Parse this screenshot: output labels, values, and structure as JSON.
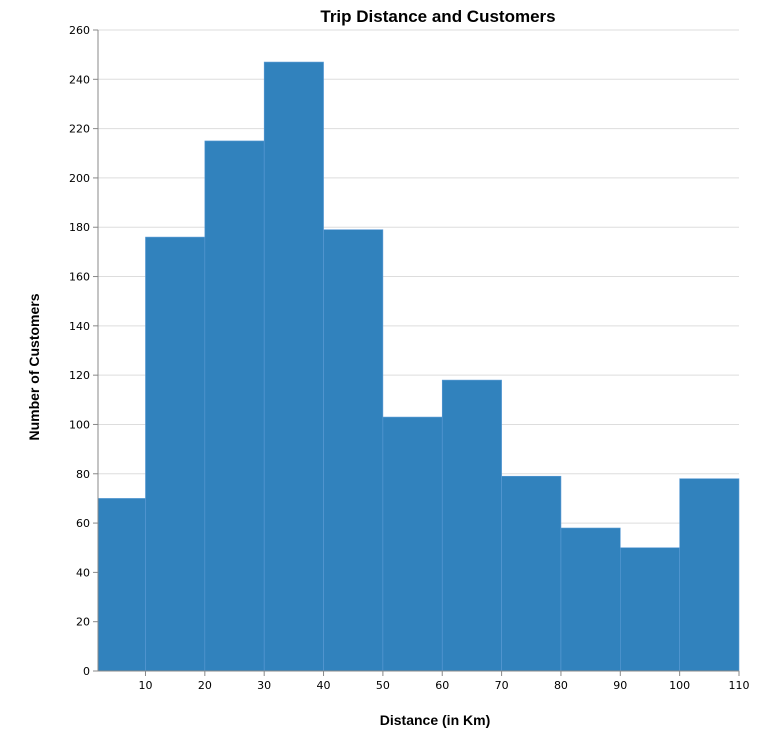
{
  "chart_data": {
    "type": "bar",
    "title": "Trip Distance and Customers",
    "xlabel": "Distance (in Km)",
    "ylabel": "Number of Customers",
    "bins": [
      {
        "x0": 2,
        "x1": 10,
        "value": 70
      },
      {
        "x0": 10,
        "x1": 20,
        "value": 176
      },
      {
        "x0": 20,
        "x1": 30,
        "value": 215
      },
      {
        "x0": 30,
        "x1": 40,
        "value": 247
      },
      {
        "x0": 40,
        "x1": 50,
        "value": 179
      },
      {
        "x0": 50,
        "x1": 60,
        "value": 103
      },
      {
        "x0": 60,
        "x1": 70,
        "value": 118
      },
      {
        "x0": 70,
        "x1": 80,
        "value": 79
      },
      {
        "x0": 80,
        "x1": 90,
        "value": 58
      },
      {
        "x0": 90,
        "x1": 100,
        "value": 50
      },
      {
        "x0": 100,
        "x1": 110,
        "value": 78
      }
    ],
    "xlim": [
      2,
      110
    ],
    "ylim": [
      0,
      260
    ],
    "x_ticks": [
      10,
      20,
      30,
      40,
      50,
      60,
      70,
      80,
      90,
      100,
      110
    ],
    "y_ticks": [
      0,
      20,
      40,
      60,
      80,
      100,
      120,
      140,
      160,
      180,
      200,
      220,
      240,
      260
    ],
    "grid": true,
    "bar_color": "#3182bd"
  }
}
